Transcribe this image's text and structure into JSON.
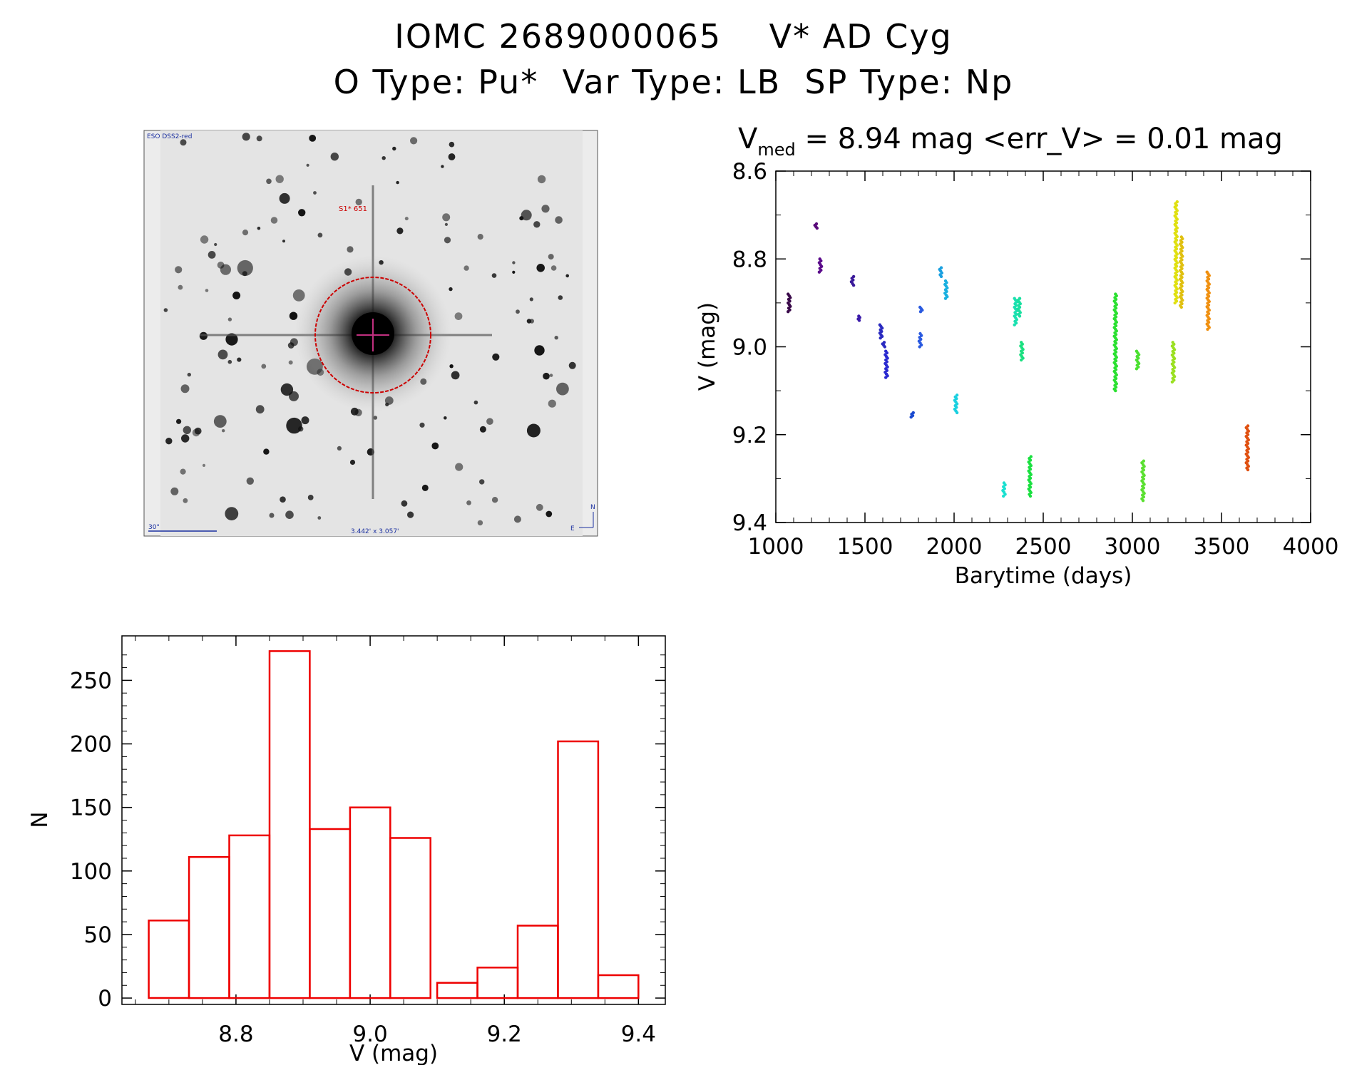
{
  "header": {
    "line1": "IOMC 2689000065    V* AD Cyg",
    "line2": "O Type: Pu*  Var Type: LB  SP Type: Np"
  },
  "image_panel": {
    "survey_label": "ESO DSS2-red",
    "object_label": "S1* 651",
    "scale_label": "30\"",
    "size_label": "3.442' x 3.057'",
    "north_label": "N",
    "east_label": "E"
  },
  "colors": {
    "histogram": "#ee0000",
    "overlay": "#cc0000",
    "compass": "#1a2fa0"
  },
  "chart_data": [
    {
      "type": "scatter",
      "title_prefix": "V",
      "title_subscript": "med",
      "title_rest": " = 8.94 mag <err_V> = 0.01 mag",
      "xlabel": "Barytime (days)",
      "ylabel": "V (mag)",
      "xlim": [
        1000,
        4000
      ],
      "ylim": [
        9.4,
        8.6
      ],
      "xticks": [
        "1000",
        "1500",
        "2000",
        "2500",
        "3000",
        "3500",
        "4000"
      ],
      "yticks": [
        "8.6",
        "8.8",
        "9.0",
        "9.2",
        "9.4"
      ],
      "clusters": [
        {
          "x": 1075,
          "y0": 8.88,
          "y1": 8.92,
          "color": "#3a0a4a"
        },
        {
          "x": 1225,
          "y0": 8.72,
          "y1": 8.73,
          "color": "#5a0a7a"
        },
        {
          "x": 1250,
          "y0": 8.8,
          "y1": 8.83,
          "color": "#5a0a8a"
        },
        {
          "x": 1430,
          "y0": 8.84,
          "y1": 8.86,
          "color": "#3a1a9a"
        },
        {
          "x": 1465,
          "y0": 8.93,
          "y1": 8.94,
          "color": "#3a1aaa"
        },
        {
          "x": 1590,
          "y0": 8.95,
          "y1": 8.98,
          "color": "#2a2ac0"
        },
        {
          "x": 1605,
          "y0": 8.99,
          "y1": 9.0,
          "color": "#2a2ac0"
        },
        {
          "x": 1620,
          "y0": 9.01,
          "y1": 9.07,
          "color": "#2a2ad0"
        },
        {
          "x": 1765,
          "y0": 9.15,
          "y1": 9.16,
          "color": "#1a4ad0"
        },
        {
          "x": 1810,
          "y0": 8.97,
          "y1": 9.0,
          "color": "#2a5ae0"
        },
        {
          "x": 1815,
          "y0": 8.91,
          "y1": 8.92,
          "color": "#2a5ae0"
        },
        {
          "x": 1925,
          "y0": 8.82,
          "y1": 8.84,
          "color": "#1aa0e0"
        },
        {
          "x": 1955,
          "y0": 8.85,
          "y1": 8.89,
          "color": "#1ab0e0"
        },
        {
          "x": 2010,
          "y0": 9.11,
          "y1": 9.15,
          "color": "#1ad0e0"
        },
        {
          "x": 2280,
          "y0": 9.31,
          "y1": 9.34,
          "color": "#1ae0d0"
        },
        {
          "x": 2345,
          "y0": 8.89,
          "y1": 8.95,
          "color": "#1ae0b0"
        },
        {
          "x": 2365,
          "y0": 8.89,
          "y1": 8.93,
          "color": "#1ae0a0"
        },
        {
          "x": 2380,
          "y0": 8.99,
          "y1": 9.03,
          "color": "#1ae080"
        },
        {
          "x": 2425,
          "y0": 9.25,
          "y1": 9.34,
          "color": "#1ae040"
        },
        {
          "x": 2905,
          "y0": 8.88,
          "y1": 9.1,
          "color": "#2ae030"
        },
        {
          "x": 3030,
          "y0": 9.01,
          "y1": 9.05,
          "color": "#4ae030"
        },
        {
          "x": 3060,
          "y0": 9.26,
          "y1": 9.35,
          "color": "#5ae030"
        },
        {
          "x": 3230,
          "y0": 8.99,
          "y1": 9.08,
          "color": "#9ae020"
        },
        {
          "x": 3245,
          "y0": 8.67,
          "y1": 8.9,
          "color": "#e0e010"
        },
        {
          "x": 3275,
          "y0": 8.75,
          "y1": 8.91,
          "color": "#e0c010"
        },
        {
          "x": 3425,
          "y0": 8.83,
          "y1": 8.96,
          "color": "#f09010"
        },
        {
          "x": 3645,
          "y0": 9.18,
          "y1": 9.28,
          "color": "#e05010"
        }
      ]
    },
    {
      "type": "bar",
      "xlabel": "V (mag)",
      "ylabel": "N",
      "xlim": [
        8.63,
        9.44
      ],
      "ylim": [
        -5,
        285
      ],
      "xticks": [
        "8.8",
        "9.0",
        "9.2",
        "9.4"
      ],
      "yticks": [
        "0",
        "50",
        "100",
        "150",
        "200",
        "250"
      ],
      "bin_width": 0.06,
      "bins_start": [
        8.67,
        8.73,
        8.79,
        8.85,
        8.91,
        8.97,
        9.03,
        9.1,
        9.16,
        9.22,
        9.28,
        9.34
      ],
      "counts": [
        61,
        111,
        128,
        273,
        133,
        150,
        126,
        12,
        24,
        57,
        202,
        18
      ]
    }
  ]
}
